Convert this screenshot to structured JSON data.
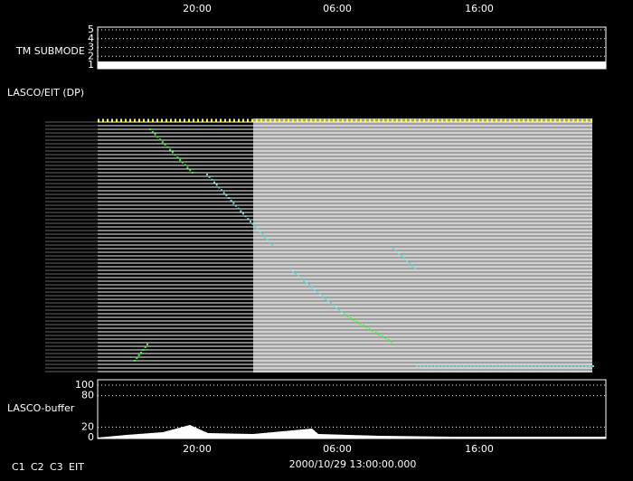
{
  "time_axis": {
    "labels": [
      "20:00",
      "06:00",
      "16:00"
    ],
    "date": "2000/10/29 13:00:00.000"
  },
  "tm_panel": {
    "label": "TM SUBMODE",
    "ylim": [
      1,
      5
    ],
    "yticks": [
      1,
      2,
      3,
      4,
      5
    ]
  },
  "lasco_panel": {
    "label": "LASCO/EIT (DP)"
  },
  "buffer_panel": {
    "label": "LASCO-buffer",
    "ylim": [
      0,
      100
    ],
    "yticks": [
      0,
      20,
      80,
      100
    ]
  },
  "legend": [
    {
      "name": "C1",
      "color": "#ff3030"
    },
    {
      "name": "C2",
      "color": "#30ff30"
    },
    {
      "name": "C3",
      "color": "#ffffff"
    },
    {
      "name": "EIT",
      "color": "#ffffff"
    }
  ]
}
